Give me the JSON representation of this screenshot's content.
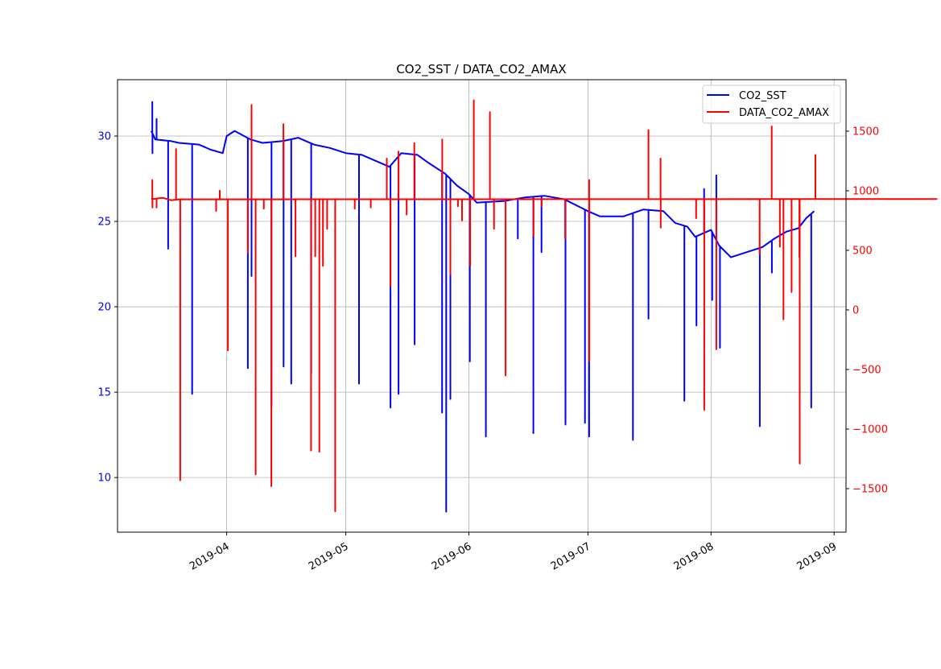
{
  "chart_data": {
    "type": "line",
    "title": "CO2_SST / DATA_CO2_AMAX",
    "xlabel": "",
    "xlim": [
      "2019-03-04T12:00",
      "2019-09-04T00:00"
    ],
    "x_ticks": [
      {
        "date": "2019-04-01",
        "label": "2019-04"
      },
      {
        "date": "2019-05-01",
        "label": "2019-05"
      },
      {
        "date": "2019-06-01",
        "label": "2019-06"
      },
      {
        "date": "2019-07-01",
        "label": "2019-07"
      },
      {
        "date": "2019-08-01",
        "label": "2019-08"
      },
      {
        "date": "2019-09-01",
        "label": "2019-09"
      }
    ],
    "grid": true,
    "legend_position": "top-right",
    "axes": {
      "left": {
        "ylim": [
          6.8,
          33.3
        ],
        "ticks": [
          10,
          15,
          20,
          25,
          30
        ],
        "color": "#0000ff"
      },
      "right": {
        "ylim": [
          -1865,
          1932
        ],
        "ticks": [
          -1500,
          -1000,
          -500,
          0,
          500,
          1000,
          1500
        ],
        "color": "#ff0000"
      }
    },
    "series": [
      {
        "name": "CO2_SST",
        "axis": "left",
        "color": "#0000ff",
        "baseline": [
          [
            "2019-03-13",
            30.3
          ],
          [
            "2019-03-14",
            29.8
          ],
          [
            "2019-03-18",
            29.7
          ],
          [
            "2019-03-20",
            29.6
          ],
          [
            "2019-03-25",
            29.5
          ],
          [
            "2019-03-28",
            29.2
          ],
          [
            "2019-03-31",
            29.0
          ],
          [
            "2019-04-01",
            30.0
          ],
          [
            "2019-04-03",
            30.3
          ],
          [
            "2019-04-07",
            29.8
          ],
          [
            "2019-04-10",
            29.6
          ],
          [
            "2019-04-15",
            29.7
          ],
          [
            "2019-04-19",
            29.9
          ],
          [
            "2019-04-23",
            29.5
          ],
          [
            "2019-04-27",
            29.3
          ],
          [
            "2019-05-01",
            29.0
          ],
          [
            "2019-05-05",
            28.9
          ],
          [
            "2019-05-09",
            28.5
          ],
          [
            "2019-05-12",
            28.2
          ],
          [
            "2019-05-15",
            29.0
          ],
          [
            "2019-05-19",
            28.9
          ],
          [
            "2019-05-22",
            28.4
          ],
          [
            "2019-05-26",
            27.8
          ],
          [
            "2019-05-29",
            27.1
          ],
          [
            "2019-06-01",
            26.6
          ],
          [
            "2019-06-03",
            26.1
          ],
          [
            "2019-06-10",
            26.2
          ],
          [
            "2019-06-15",
            26.4
          ],
          [
            "2019-06-20",
            26.5
          ],
          [
            "2019-06-25",
            26.3
          ],
          [
            "2019-07-01",
            25.6
          ],
          [
            "2019-07-04",
            25.3
          ],
          [
            "2019-07-10",
            25.3
          ],
          [
            "2019-07-15",
            25.7
          ],
          [
            "2019-07-20",
            25.6
          ],
          [
            "2019-07-23",
            24.9
          ],
          [
            "2019-07-26",
            24.7
          ],
          [
            "2019-07-28",
            24.1
          ],
          [
            "2019-08-01",
            24.5
          ],
          [
            "2019-08-03",
            23.6
          ],
          [
            "2019-08-06",
            22.9
          ],
          [
            "2019-08-10",
            23.2
          ],
          [
            "2019-08-14",
            23.5
          ],
          [
            "2019-08-17",
            24.0
          ],
          [
            "2019-08-20",
            24.4
          ],
          [
            "2019-08-23",
            24.6
          ],
          [
            "2019-08-25",
            25.2
          ],
          [
            "2019-08-27",
            25.6
          ]
        ],
        "spikes": [
          [
            "2019-03-13",
            32.0
          ],
          [
            "2019-03-13",
            29.0
          ],
          [
            "2019-03-14",
            31.0
          ],
          [
            "2019-03-17",
            23.4
          ],
          [
            "2019-03-23",
            14.9
          ],
          [
            "2019-04-06",
            16.4
          ],
          [
            "2019-04-07",
            21.8
          ],
          [
            "2019-04-12",
            14.2
          ],
          [
            "2019-04-15",
            16.5
          ],
          [
            "2019-04-17",
            15.5
          ],
          [
            "2019-04-22",
            16.1
          ],
          [
            "2019-05-04",
            15.5
          ],
          [
            "2019-05-12",
            14.1
          ],
          [
            "2019-05-14",
            14.9
          ],
          [
            "2019-05-18",
            17.8
          ],
          [
            "2019-05-25",
            13.8
          ],
          [
            "2019-05-26",
            8.0
          ],
          [
            "2019-05-27",
            14.6
          ],
          [
            "2019-06-01",
            16.8
          ],
          [
            "2019-06-05",
            12.4
          ],
          [
            "2019-06-13",
            24.0
          ],
          [
            "2019-06-17",
            12.6
          ],
          [
            "2019-06-19",
            23.2
          ],
          [
            "2019-06-25",
            13.1
          ],
          [
            "2019-06-30",
            13.2
          ],
          [
            "2019-07-01",
            12.4
          ],
          [
            "2019-07-12",
            12.2
          ],
          [
            "2019-07-16",
            19.3
          ],
          [
            "2019-07-25",
            14.5
          ],
          [
            "2019-07-28",
            18.9
          ],
          [
            "2019-07-30",
            26.9
          ],
          [
            "2019-08-01",
            20.4
          ],
          [
            "2019-08-02",
            27.7
          ],
          [
            "2019-08-03",
            17.6
          ],
          [
            "2019-08-13",
            13.0
          ],
          [
            "2019-08-16",
            22.0
          ],
          [
            "2019-08-26",
            14.1
          ]
        ]
      },
      {
        "name": "DATA_CO2_AMAX",
        "axis": "right",
        "color": "#ff0000",
        "baseline": [
          [
            "2019-03-13",
            930
          ],
          [
            "2019-03-16",
            940
          ],
          [
            "2019-03-18",
            920
          ],
          [
            "2019-03-20",
            928
          ],
          [
            "2019-09-27",
            930
          ],
          [
            "2019-08-27",
            930
          ]
        ],
        "spikes": [
          [
            "2019-03-13",
            1090
          ],
          [
            "2019-03-13",
            860
          ],
          [
            "2019-03-14",
            860
          ],
          [
            "2019-03-19",
            1350
          ],
          [
            "2019-03-20",
            -1430
          ],
          [
            "2019-03-29",
            830
          ],
          [
            "2019-03-30",
            1000
          ],
          [
            "2019-04-01",
            -340
          ],
          [
            "2019-04-06",
            480
          ],
          [
            "2019-04-07",
            1720
          ],
          [
            "2019-04-08",
            -1380
          ],
          [
            "2019-04-10",
            850
          ],
          [
            "2019-04-12",
            -1480
          ],
          [
            "2019-04-15",
            1560
          ],
          [
            "2019-04-18",
            450
          ],
          [
            "2019-04-22",
            -1180
          ],
          [
            "2019-04-23",
            450
          ],
          [
            "2019-04-24",
            -1190
          ],
          [
            "2019-04-25",
            370
          ],
          [
            "2019-04-26",
            680
          ],
          [
            "2019-04-28",
            -1690
          ],
          [
            "2019-05-03",
            850
          ],
          [
            "2019-05-07",
            860
          ],
          [
            "2019-05-11",
            1270
          ],
          [
            "2019-05-12",
            200
          ],
          [
            "2019-05-14",
            1330
          ],
          [
            "2019-05-16",
            800
          ],
          [
            "2019-05-18",
            1400
          ],
          [
            "2019-05-25",
            1430
          ],
          [
            "2019-05-27",
            300
          ],
          [
            "2019-05-29",
            870
          ],
          [
            "2019-05-30",
            750
          ],
          [
            "2019-06-01",
            370
          ],
          [
            "2019-06-02",
            1760
          ],
          [
            "2019-06-06",
            1660
          ],
          [
            "2019-06-07",
            680
          ],
          [
            "2019-06-10",
            -550
          ],
          [
            "2019-06-17",
            620
          ],
          [
            "2019-06-19",
            870
          ],
          [
            "2019-06-25",
            600
          ],
          [
            "2019-07-01",
            1090
          ],
          [
            "2019-07-01",
            -430
          ],
          [
            "2019-07-16",
            1510
          ],
          [
            "2019-07-19",
            1270
          ],
          [
            "2019-07-19",
            690
          ],
          [
            "2019-07-28",
            770
          ],
          [
            "2019-07-30",
            -840
          ],
          [
            "2019-08-02",
            -330
          ],
          [
            "2019-08-13",
            470
          ],
          [
            "2019-08-16",
            1540
          ],
          [
            "2019-08-18",
            530
          ],
          [
            "2019-08-19",
            -80
          ],
          [
            "2019-08-21",
            150
          ],
          [
            "2019-08-23",
            -1290
          ],
          [
            "2019-08-23",
            440
          ],
          [
            "2019-08-27",
            1300
          ]
        ]
      }
    ]
  }
}
